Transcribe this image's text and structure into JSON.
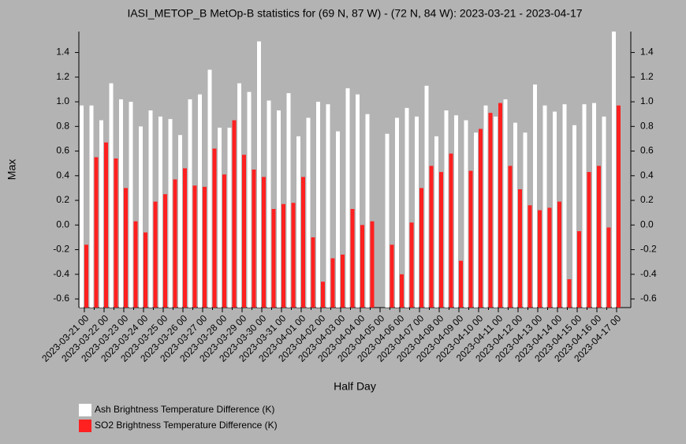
{
  "chart_data": {
    "type": "bar",
    "title": "IASI_METOP_B MetOp-B statistics for (69 N, 87 W) - (72 N, 84 W): 2023-03-21 - 2023-04-17",
    "x_label": "Half Day",
    "y_label": "Max",
    "categories": [
      "2023-03-21 00",
      null,
      "2023-03-22 00",
      null,
      "2023-03-23 00",
      null,
      "2023-03-24 00",
      null,
      "2023-03-25 00",
      null,
      "2023-03-26 00",
      null,
      "2023-03-27 00",
      null,
      "2023-03-28 00",
      null,
      "2023-03-29 00",
      null,
      "2023-03-30 00",
      null,
      "2023-03-31 00",
      null,
      "2023-04-01 00",
      null,
      "2023-04-02 00",
      null,
      "2023-04-03 00",
      null,
      "2023-04-04 00",
      null,
      "2023-04-05 00",
      null,
      "2023-04-06 00",
      null,
      "2023-04-07 00",
      null,
      "2023-04-08 00",
      null,
      "2023-04-09 00",
      null,
      "2023-04-10 00",
      null,
      "2023-04-11 00",
      null,
      "2023-04-12 00",
      null,
      "2023-04-13 00",
      null,
      "2023-04-14 00",
      null,
      "2023-04-15 00",
      null,
      "2023-04-16 00",
      null,
      "2023-04-17 00"
    ],
    "series": [
      {
        "name": "Ash Brightness Temperature Difference (K)",
        "color": "#ffffff",
        "values": [
          0.97,
          0.97,
          0.85,
          1.15,
          1.02,
          1.0,
          0.8,
          0.93,
          0.88,
          0.86,
          0.73,
          1.02,
          1.06,
          1.26,
          0.79,
          0.79,
          1.15,
          1.08,
          1.49,
          1.01,
          0.93,
          1.07,
          0.72,
          0.87,
          1.0,
          0.98,
          0.76,
          1.11,
          1.06,
          0.9,
          null,
          0.74,
          0.87,
          0.95,
          0.88,
          1.13,
          0.72,
          0.93,
          0.89,
          0.85,
          0.75,
          0.97,
          0.88,
          1.02,
          0.83,
          0.75,
          1.14,
          0.97,
          0.92,
          0.98,
          0.81,
          0.98,
          0.99,
          0.88,
          1.57
        ]
      },
      {
        "name": "SO2 Brightness Temperature Difference (K)",
        "color": "#ff2020",
        "values": [
          -0.16,
          0.55,
          0.67,
          0.54,
          0.3,
          0.03,
          -0.06,
          0.19,
          0.25,
          0.37,
          0.46,
          0.32,
          0.31,
          0.62,
          0.41,
          0.85,
          0.57,
          0.45,
          0.39,
          0.13,
          0.17,
          0.18,
          0.39,
          -0.1,
          -0.46,
          -0.27,
          -0.24,
          0.13,
          0.0,
          0.03,
          null,
          -0.16,
          -0.4,
          0.02,
          0.3,
          0.48,
          0.43,
          0.58,
          -0.29,
          0.44,
          0.78,
          0.91,
          0.99,
          0.48,
          0.29,
          0.16,
          0.12,
          0.14,
          0.19,
          -0.44,
          -0.05,
          0.43,
          0.48,
          -0.02,
          0.97
        ]
      }
    ],
    "ylim": [
      -0.67,
      1.57
    ],
    "yticks": [
      -0.6,
      -0.4,
      -0.2,
      {
        "value": 0,
        "label": "0.0"
      },
      0.2,
      0.4,
      0.6,
      0.8,
      {
        "value": 1,
        "label": "1.0"
      },
      1.2,
      1.4
    ],
    "grid": false,
    "legend": "bottom-left"
  }
}
